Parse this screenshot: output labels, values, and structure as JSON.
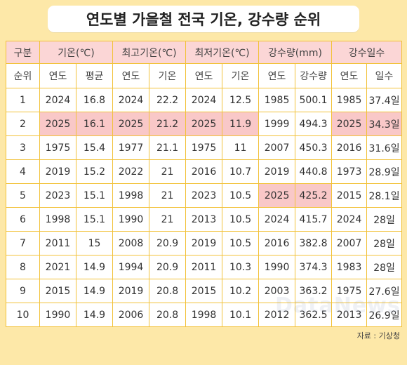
{
  "title": "연도별 가을철 전국 기온, 강수량 순위",
  "header_groups": [
    "구분",
    "기온(℃)",
    "최고기온(℃)",
    "최저기온(℃)",
    "강수량(mm)",
    "강수일수"
  ],
  "sub_headers": [
    "순위",
    "연도",
    "평균",
    "연도",
    "기온",
    "연도",
    "기온",
    "연도",
    "강수량",
    "연도",
    "일수"
  ],
  "rows": [
    [
      "1",
      "2024",
      "16.8",
      "2024",
      "22.2",
      "2024",
      "12.5",
      "1985",
      "500.1",
      "1985",
      "37.4일"
    ],
    [
      "2",
      "2025",
      "16.1",
      "2025",
      "21.2",
      "2025",
      "11.9",
      "1999",
      "494.3",
      "2025",
      "34.3일"
    ],
    [
      "3",
      "1975",
      "15.4",
      "1977",
      "21.1",
      "1975",
      "11",
      "2007",
      "450.3",
      "2016",
      "31.6일"
    ],
    [
      "4",
      "2019",
      "15.2",
      "2022",
      "21",
      "2016",
      "10.7",
      "2019",
      "440.8",
      "1973",
      "28.9일"
    ],
    [
      "5",
      "2023",
      "15.1",
      "1998",
      "21",
      "2023",
      "10.5",
      "2025",
      "425.2",
      "2015",
      "28.1일"
    ],
    [
      "6",
      "1998",
      "15.1",
      "1990",
      "21",
      "2013",
      "10.5",
      "2024",
      "415.7",
      "2024",
      "28일"
    ],
    [
      "7",
      "2011",
      "15",
      "2008",
      "20.9",
      "2019",
      "10.5",
      "2016",
      "382.8",
      "2007",
      "28일"
    ],
    [
      "8",
      "2021",
      "14.9",
      "1994",
      "20.9",
      "2011",
      "10.3",
      "1990",
      "374.3",
      "1983",
      "28일"
    ],
    [
      "9",
      "2015",
      "14.9",
      "2019",
      "20.8",
      "2015",
      "10.2",
      "2003",
      "363.2",
      "1975",
      "27.6일"
    ],
    [
      "10",
      "1990",
      "14.9",
      "2006",
      "20.8",
      "1998",
      "10.1",
      "2012",
      "362.5",
      "2013",
      "26.9일"
    ]
  ],
  "highlight_color": "#f9c8c8",
  "source": "자료 : 기상청",
  "watermark": "DataNews"
}
